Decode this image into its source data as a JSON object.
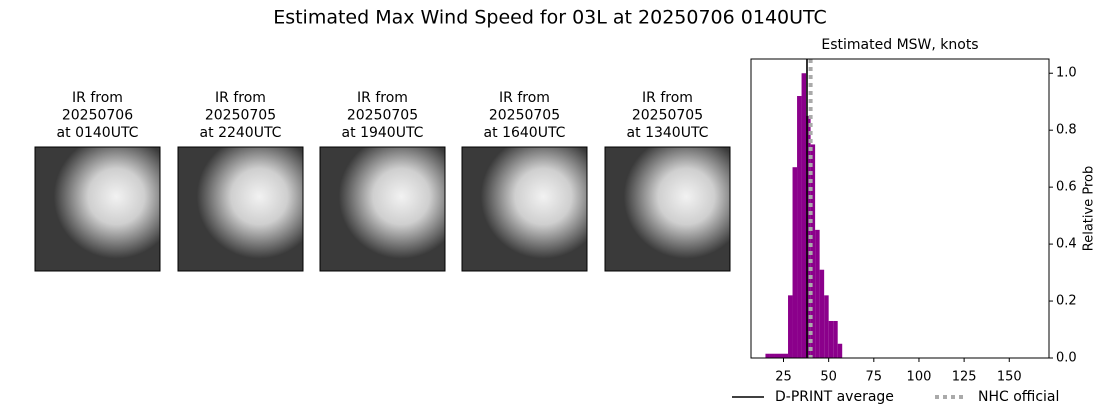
{
  "title": "Estimated Max Wind Speed for 03L at 20250706 0140UTC",
  "panels": [
    {
      "caption": [
        "IR from",
        "20250706",
        "at 0140UTC"
      ]
    },
    {
      "caption": [
        "IR from",
        "20250705",
        "at 2240UTC"
      ]
    },
    {
      "caption": [
        "IR from",
        "20250705",
        "at 1940UTC"
      ]
    },
    {
      "caption": [
        "IR from",
        "20250705",
        "at 1640UTC"
      ]
    },
    {
      "caption": [
        "IR from",
        "20250705",
        "at 1340UTC"
      ]
    }
  ],
  "chart_data": {
    "type": "histogram",
    "title": "Estimated MSW, knots",
    "ylabel": "Relative Prob",
    "bins": [
      15,
      17.5,
      20,
      22.5,
      25,
      27.5,
      30,
      32.5,
      35,
      37.5,
      40,
      42.5,
      45,
      47.5,
      50,
      52.5,
      55,
      57.5
    ],
    "values": [
      0.015,
      0.015,
      0.015,
      0.015,
      0.015,
      0.22,
      0.67,
      0.92,
      1.0,
      0.85,
      0.75,
      0.45,
      0.31,
      0.22,
      0.13,
      0.13,
      0.05
    ],
    "color": "#8b008b",
    "xlim": [
      7,
      172
    ],
    "ylim": [
      0,
      1.05
    ],
    "xticks": [
      25,
      50,
      75,
      100,
      125,
      150
    ],
    "yticks": [
      {
        "value": 0,
        "label": "0.0"
      },
      0.2,
      0.4,
      0.6,
      0.8,
      {
        "value": 1,
        "label": "1.0"
      }
    ],
    "y_axis_side": "right",
    "series": [
      {
        "name": "D-PRINT average",
        "color": "#000000",
        "value": 38,
        "style": "solid"
      },
      {
        "name": "NHC official",
        "color": "#aaaaaa",
        "value": 40,
        "style": "dotted"
      }
    ],
    "legend": "bottom"
  }
}
